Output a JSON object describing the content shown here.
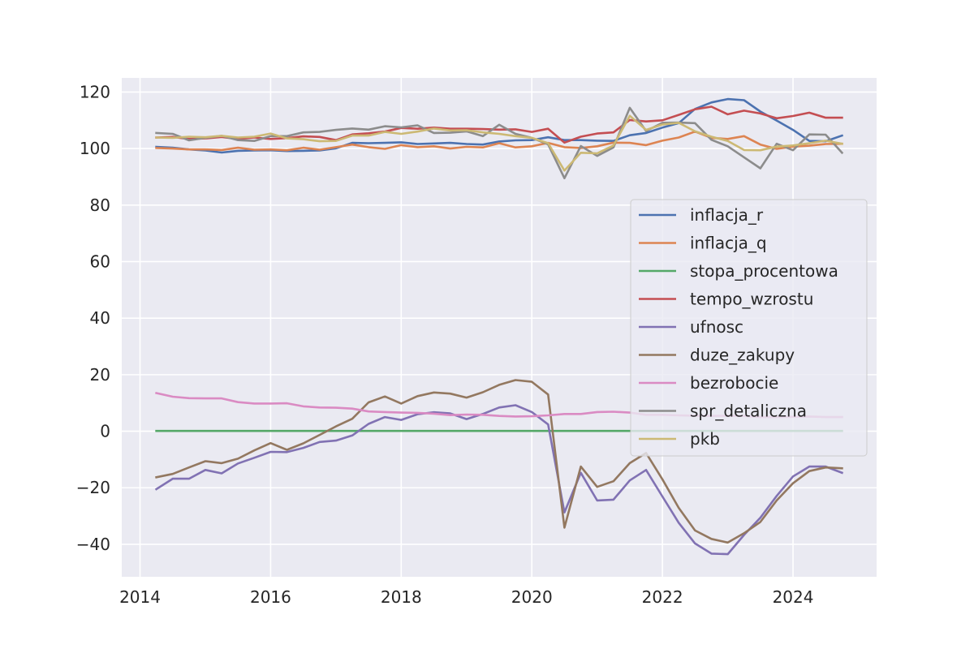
{
  "chart_data": {
    "type": "line",
    "title": "",
    "xlabel": "",
    "ylabel": "",
    "xlim": [
      2013.72,
      2025.28
    ],
    "ylim": [
      -51.5,
      125
    ],
    "grid": true,
    "legend_position": "center-right",
    "x_ticks": [
      {
        "value": 2014,
        "label": "2014"
      },
      {
        "value": 2016,
        "label": "2016"
      },
      {
        "value": 2018,
        "label": "2018"
      },
      {
        "value": 2020,
        "label": "2020"
      },
      {
        "value": 2022,
        "label": "2022"
      },
      {
        "value": 2024,
        "label": "2024"
      }
    ],
    "y_ticks": [
      {
        "value": 120,
        "label": "120"
      },
      {
        "value": 100,
        "label": "100"
      },
      {
        "value": 80,
        "label": "80"
      },
      {
        "value": 60,
        "label": "60"
      },
      {
        "value": 40,
        "label": "40"
      },
      {
        "value": 20,
        "label": "20"
      },
      {
        "value": 0,
        "label": "0"
      },
      {
        "value": -20,
        "label": "−20"
      },
      {
        "value": -40,
        "label": "−40"
      }
    ],
    "x": [
      2014.25,
      2014.5,
      2014.75,
      2015.0,
      2015.25,
      2015.5,
      2015.75,
      2016.0,
      2016.25,
      2016.5,
      2016.75,
      2017.0,
      2017.25,
      2017.5,
      2017.75,
      2018.0,
      2018.25,
      2018.5,
      2018.75,
      2019.0,
      2019.25,
      2019.5,
      2019.75,
      2020.0,
      2020.25,
      2020.5,
      2020.75,
      2021.0,
      2021.25,
      2021.5,
      2021.75,
      2022.0,
      2022.25,
      2022.5,
      2022.75,
      2023.0,
      2023.25,
      2023.5,
      2023.75,
      2024.0,
      2024.25,
      2024.5,
      2024.75
    ],
    "series": [
      {
        "name": "inflacja_r",
        "color": "#4c72b0",
        "values": [
          100.6,
          100.3,
          99.7,
          99.3,
          98.6,
          99.2,
          99.3,
          99.4,
          99.1,
          99.2,
          99.3,
          100.1,
          102.0,
          101.9,
          102.0,
          102.2,
          101.6,
          101.8,
          102.0,
          101.6,
          101.4,
          102.5,
          102.9,
          103.0,
          104.0,
          103.0,
          103.0,
          102.8,
          102.7,
          104.7,
          105.5,
          107.4,
          109.0,
          114.0,
          116.3,
          117.5,
          117.1,
          113.1,
          109.9,
          106.6,
          102.7,
          102.6,
          104.6
        ]
      },
      {
        "name": "inflacja_q",
        "color": "#dd8452",
        "values": [
          100.2,
          100.0,
          99.7,
          99.7,
          99.5,
          100.3,
          99.6,
          99.7,
          99.4,
          100.3,
          99.6,
          100.5,
          101.4,
          100.5,
          99.9,
          101.2,
          100.5,
          100.8,
          100.0,
          100.6,
          100.4,
          101.9,
          100.4,
          100.8,
          102.0,
          100.5,
          100.2,
          100.8,
          102.1,
          102.0,
          101.2,
          102.8,
          103.9,
          106.0,
          103.8,
          103.4,
          104.4,
          101.4,
          99.9,
          100.7,
          101.0,
          101.6,
          101.7
        ]
      },
      {
        "name": "stopa_procentowa",
        "color": "#55a868",
        "values": [
          0.1,
          0.1,
          0.1,
          0.1,
          0.1,
          0.1,
          0.1,
          0.1,
          0.1,
          0.1,
          0.1,
          0.1,
          0.1,
          0.1,
          0.1,
          0.1,
          0.1,
          0.1,
          0.1,
          0.1,
          0.1,
          0.1,
          0.1,
          0.1,
          0.1,
          0.1,
          0.1,
          0.1,
          0.1,
          0.1,
          0.1,
          0.1,
          0.1,
          0.1,
          0.1,
          0.1,
          0.1,
          0.1,
          0.1,
          0.1,
          0.1,
          0.1,
          0.1
        ]
      },
      {
        "name": "tempo_wzrostu",
        "color": "#c44e52",
        "values": [
          103.9,
          104.1,
          103.4,
          103.6,
          104.1,
          103.4,
          103.9,
          103.4,
          103.7,
          104.3,
          104.1,
          103.0,
          105.0,
          105.4,
          106.0,
          107.3,
          107.0,
          107.4,
          107.0,
          107.0,
          106.9,
          106.7,
          106.8,
          105.9,
          107.0,
          102.1,
          104.2,
          105.3,
          105.7,
          110.1,
          109.6,
          110.0,
          111.9,
          113.9,
          114.8,
          112.1,
          113.4,
          112.4,
          110.7,
          111.5,
          112.7,
          110.9,
          110.9
        ]
      },
      {
        "name": "ufnosc",
        "color": "#8172b3",
        "values": [
          -20.5,
          -16.8,
          -16.8,
          -13.7,
          -14.9,
          -11.4,
          -9.4,
          -7.3,
          -7.4,
          -5.9,
          -3.8,
          -3.3,
          -1.5,
          2.6,
          5.0,
          4.0,
          6.0,
          6.7,
          6.3,
          4.3,
          6.1,
          8.4,
          9.2,
          6.8,
          2.4,
          -28.7,
          -14.7,
          -24.5,
          -24.2,
          -17.4,
          -13.7,
          -23.1,
          -32.4,
          -39.7,
          -43.3,
          -43.5,
          -36.7,
          -30.6,
          -22.9,
          -16.0,
          -12.5,
          -12.5,
          -14.7
        ]
      },
      {
        "name": "duze_zakupy",
        "color": "#937860",
        "values": [
          -16.3,
          -15.1,
          -12.8,
          -10.6,
          -11.3,
          -9.7,
          -6.8,
          -4.2,
          -6.6,
          -4.3,
          -1.3,
          1.7,
          4.4,
          10.2,
          12.3,
          9.8,
          12.4,
          13.7,
          13.3,
          11.9,
          13.8,
          16.4,
          18.1,
          17.5,
          13.0,
          -34.1,
          -12.5,
          -19.7,
          -17.7,
          -11.3,
          -7.7,
          -17.0,
          -27.1,
          -35.1,
          -38.1,
          -39.4,
          -36.1,
          -32.1,
          -24.5,
          -18.4,
          -14.1,
          -12.8,
          -13.1
        ]
      },
      {
        "name": "bezrobocie",
        "color": "#da8bc3",
        "values": [
          13.5,
          12.2,
          11.7,
          11.6,
          11.6,
          10.3,
          9.8,
          9.8,
          9.9,
          8.8,
          8.4,
          8.3,
          8.0,
          7.0,
          6.8,
          6.6,
          6.5,
          6.2,
          5.7,
          5.9,
          5.8,
          5.4,
          5.2,
          5.3,
          5.6,
          6.1,
          6.1,
          6.8,
          6.9,
          6.6,
          5.8,
          5.8,
          5.6,
          5.5,
          5.4,
          5.5,
          5.4,
          5.0,
          5.0,
          5.1,
          5.2,
          5.0,
          5.0
        ]
      },
      {
        "name": "spr_detaliczna",
        "color": "#8c8c8c",
        "values": [
          105.5,
          105.2,
          102.9,
          103.8,
          104.5,
          103.0,
          102.7,
          104.4,
          104.4,
          105.7,
          105.9,
          106.6,
          107.1,
          106.7,
          107.9,
          107.5,
          108.2,
          105.5,
          105.6,
          106.1,
          104.4,
          108.4,
          105.2,
          103.8,
          101.5,
          89.5,
          100.9,
          97.4,
          100.4,
          114.4,
          106.2,
          109.1,
          109.2,
          109.0,
          103.1,
          100.8,
          96.9,
          93.0,
          101.7,
          99.4,
          105.0,
          104.9,
          98.5
        ]
      },
      {
        "name": "pkb",
        "color": "#ccb974",
        "values": [
          103.9,
          103.8,
          104.2,
          104.0,
          104.5,
          103.9,
          104.2,
          105.3,
          103.6,
          103.3,
          102.6,
          102.7,
          104.6,
          104.6,
          105.9,
          105.2,
          106.0,
          107.1,
          106.4,
          106.5,
          105.7,
          105.2,
          104.4,
          103.8,
          101.9,
          92.2,
          98.5,
          98.3,
          101.1,
          111.6,
          106.6,
          108.5,
          109.1,
          106.1,
          104.2,
          102.7,
          99.5,
          99.4,
          100.7,
          101.1,
          101.9,
          102.8,
          101.7
        ]
      }
    ]
  }
}
